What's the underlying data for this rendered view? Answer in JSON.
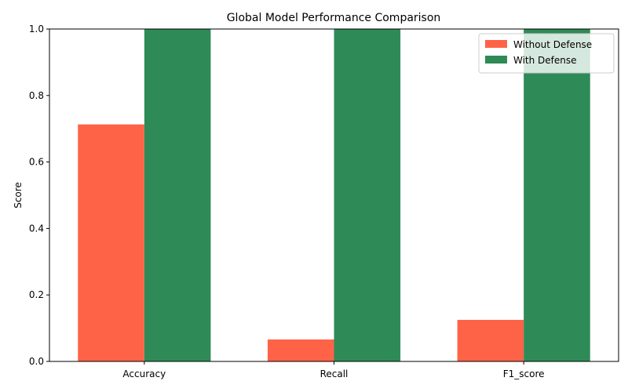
{
  "chart_data": {
    "type": "bar",
    "title": "Global Model Performance Comparison",
    "xlabel": "",
    "ylabel": "Score",
    "ylim": [
      0,
      1
    ],
    "yticks": [
      0.0,
      0.2,
      0.4,
      0.6,
      0.8,
      1.0
    ],
    "ytick_labels": [
      "0.0",
      "0.2",
      "0.4",
      "0.6",
      "0.8",
      "1.0"
    ],
    "categories": [
      "Accuracy",
      "Recall",
      "F1_score"
    ],
    "series": [
      {
        "name": "Without Defense",
        "color": "#ff6347",
        "values": [
          0.713,
          0.066,
          0.125
        ]
      },
      {
        "name": "With Defense",
        "color": "#2e8b57",
        "values": [
          1.0,
          1.0,
          1.0
        ]
      }
    ],
    "legend": {
      "position": "top-right"
    },
    "grid": false
  }
}
